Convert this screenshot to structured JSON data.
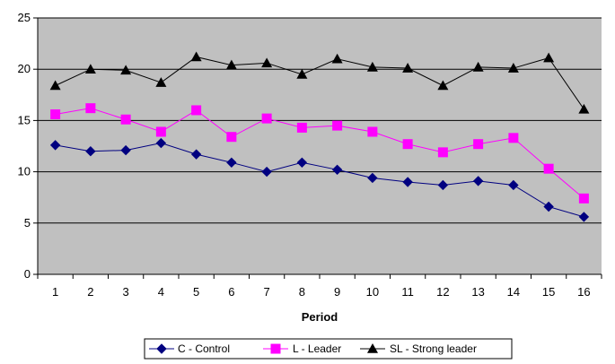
{
  "chart_data": {
    "type": "line",
    "title": "",
    "xlabel": "Period",
    "ylabel": "",
    "x": [
      "1",
      "2",
      "3",
      "4",
      "5",
      "6",
      "7",
      "8",
      "9",
      "10",
      "11",
      "12",
      "13",
      "14",
      "15",
      "16"
    ],
    "ylim": [
      0,
      25
    ],
    "yticks": [
      "0",
      "5",
      "10",
      "15",
      "20",
      "25"
    ],
    "grid": "horizontal",
    "legend_position": "bottom",
    "background": "#c0c0c0",
    "series": [
      {
        "name": "C - Control",
        "marker": "diamond",
        "color": "#000080",
        "values": [
          12.6,
          12.0,
          12.1,
          12.8,
          11.7,
          10.9,
          10.0,
          10.9,
          10.2,
          9.4,
          9.0,
          8.7,
          9.1,
          8.7,
          6.6,
          5.6
        ]
      },
      {
        "name": "L - Leader",
        "marker": "square",
        "color": "#ff00ff",
        "values": [
          15.6,
          16.2,
          15.1,
          13.9,
          16.0,
          13.4,
          15.2,
          14.3,
          14.5,
          13.9,
          12.7,
          11.9,
          12.7,
          13.3,
          10.3,
          7.4
        ]
      },
      {
        "name": "SL - Strong leader",
        "marker": "triangle",
        "color": "#000000",
        "values": [
          18.4,
          20.0,
          19.9,
          18.7,
          21.2,
          20.4,
          20.6,
          19.5,
          21.0,
          20.2,
          20.1,
          18.4,
          20.2,
          20.1,
          21.1,
          16.1
        ]
      }
    ]
  }
}
